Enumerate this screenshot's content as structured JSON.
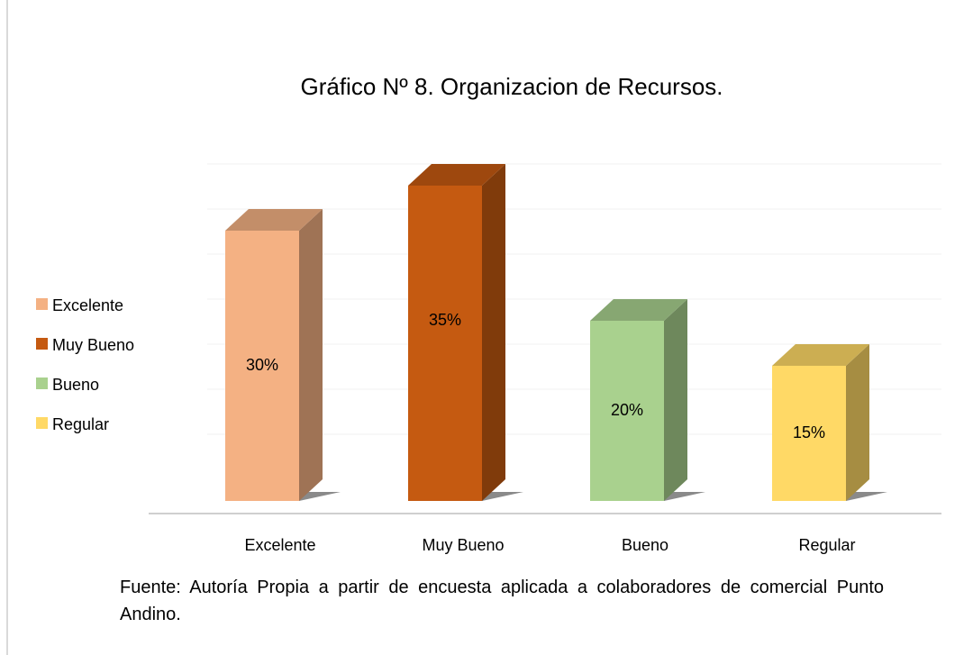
{
  "chart_data": {
    "type": "bar3d",
    "title": "Gráfico Nº 8. Organizacion de Recursos.",
    "categories": [
      "Excelente",
      "Muy Bueno",
      "Bueno",
      "Regular"
    ],
    "values": [
      30,
      35,
      20,
      15
    ],
    "value_labels": [
      "30%",
      "35%",
      "20%",
      "15%"
    ],
    "colors": [
      "#f4b183",
      "#c55a11",
      "#a9d18e",
      "#ffd966"
    ],
    "ylim": [
      0,
      35
    ],
    "yticks": [
      0,
      5,
      10,
      15,
      20,
      25,
      30,
      35
    ],
    "grid": true,
    "legend": "left",
    "note": "Fuente:  Autoría Propia a partir de encuesta aplicada a colaboradores de comercial Punto Andino."
  }
}
